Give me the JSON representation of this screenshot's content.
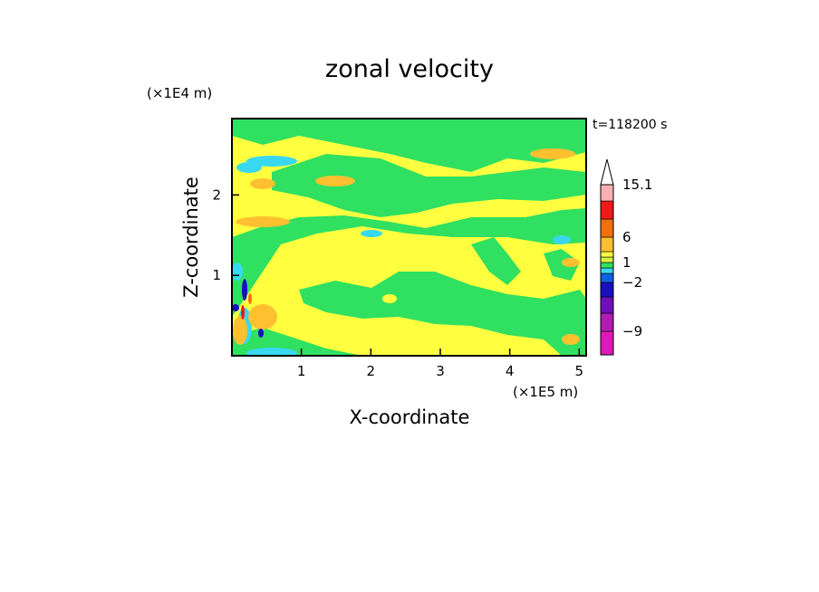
{
  "chart_data": {
    "type": "heatmap",
    "title": "zonal velocity",
    "xlabel": "X-coordinate",
    "ylabel": "Z-coordinate",
    "x_unit_label": "(×1E5 m)",
    "y_unit_label": "(×1E4 m)",
    "time_label": "t=118200 s",
    "xlim": [
      0,
      5.1
    ],
    "ylim": [
      0,
      2.95
    ],
    "x_ticks": [
      1,
      2,
      3,
      4,
      5
    ],
    "y_ticks": [
      1,
      2
    ],
    "colorbar": {
      "levels": [
        -13,
        -9,
        -6,
        -4,
        -2,
        -1,
        0,
        1,
        2,
        3,
        6,
        9,
        12,
        15.1
      ],
      "labeled_levels": [
        15.1,
        6,
        1,
        -2,
        -9
      ],
      "colors_bottom_to_top": [
        "#e018b8",
        "#b01cb0",
        "#7010b8",
        "#1810c0",
        "#1060e0",
        "#38d8f0",
        "#30e060",
        "#d8f040",
        "#ffff40",
        "#ffc030",
        "#f07010",
        "#f01818",
        "#f8b0b0",
        "#ffffff"
      ],
      "extend_max_triangle": true
    },
    "field_description_colors": {
      "background": "#ffff40",
      "band": "#30e060",
      "cyan": "#38d8f0",
      "orange": "#ffc030"
    }
  }
}
